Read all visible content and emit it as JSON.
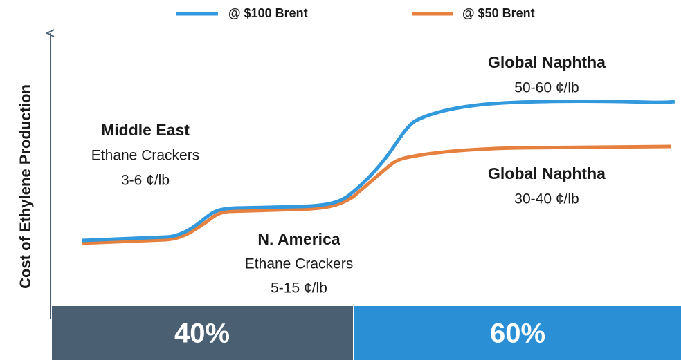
{
  "legend": [
    {
      "label": "@ $100 Brent"
    },
    {
      "label": "@ $50 Brent"
    }
  ],
  "y_axis_label": "Cost of Ethylene Production",
  "annotations": [
    {
      "title": "Middle East",
      "lines": [
        "Ethane Crackers",
        "3-6 ¢/lb"
      ]
    },
    {
      "title": "N. America",
      "lines": [
        "Ethane Crackers",
        "5-15 ¢/lb"
      ]
    },
    {
      "title": "Global Naphtha",
      "lines": [
        "50-60 ¢/lb"
      ]
    },
    {
      "title": "Global Naphtha",
      "lines": [
        "30-40 ¢/lb"
      ]
    }
  ],
  "segments": [
    {
      "label": "40%"
    },
    {
      "label": "60%"
    }
  ]
}
